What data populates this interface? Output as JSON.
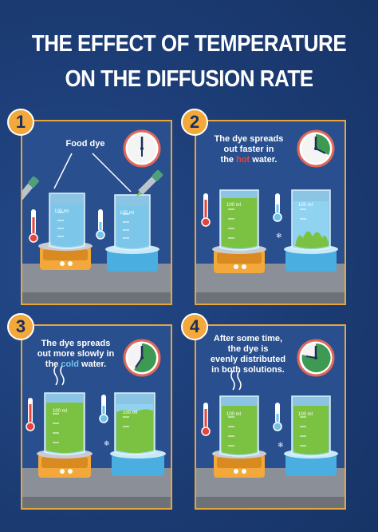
{
  "title": {
    "line1": "THE EFFECT OF TEMPERATURE",
    "line2": "ON THE DIFFUSION RATE"
  },
  "panels": [
    {
      "number": "1",
      "label": "Food dye",
      "beaker_left_label": "100 ml",
      "beaker_right_label": "100 ml"
    },
    {
      "number": "2",
      "text_line1": "The dye spreads",
      "text_line2": "out faster in",
      "text_line3_pre": "the ",
      "text_line3_highlight": "hot",
      "text_line3_post": " water.",
      "beaker_left_label": "100 ml",
      "beaker_right_label": "100 ml"
    },
    {
      "number": "3",
      "text_line1": "The dye spreads",
      "text_line2": "out more slowly in",
      "text_line3_pre": "the ",
      "text_line3_highlight": "cold",
      "text_line3_post": " water.",
      "beaker_left_label": "100 ml",
      "beaker_right_label": "100 ml"
    },
    {
      "number": "4",
      "text_line1": "After some time,",
      "text_line2": "the dye is",
      "text_line3": "evenly distributed",
      "text_line4": "in both solutions.",
      "beaker_left_label": "100 ml",
      "beaker_right_label": "100 ml"
    }
  ],
  "colors": {
    "background": "#1d3f78",
    "panel": "#2a4f8e",
    "border": "#e8a53a",
    "hot": "#e8433b",
    "cold": "#6ec3ec",
    "dye": "#7cc242",
    "water": "#8fd3f0"
  }
}
